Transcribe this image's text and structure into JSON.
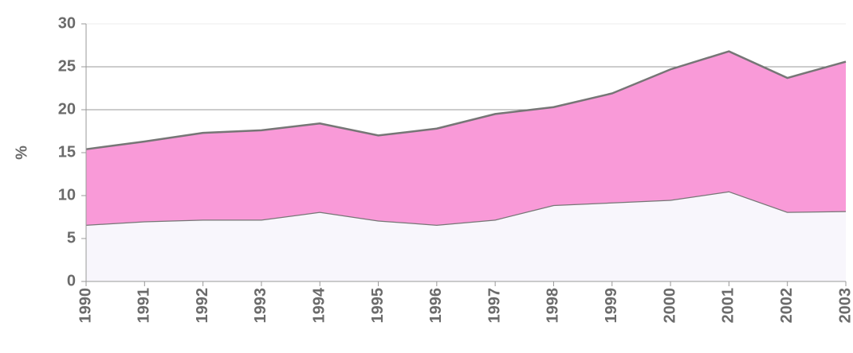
{
  "chart_data": {
    "type": "stacked_area",
    "y_label": "%",
    "categories": [
      "1990",
      "1991",
      "1992",
      "1993",
      "1994",
      "1995",
      "1996",
      "1997",
      "1998",
      "1999",
      "2000",
      "2001",
      "2002",
      "2003"
    ],
    "series": [
      {
        "color": "#f8f6fc",
        "values": [
          6.6,
          7.0,
          7.2,
          7.2,
          8.1,
          7.1,
          6.6,
          7.2,
          8.9,
          9.2,
          9.5,
          10.5,
          8.1,
          8.2
        ]
      },
      {
        "color": "#f99ad8",
        "values": [
          8.8,
          9.3,
          10.1,
          10.4,
          10.3,
          9.9,
          11.2,
          12.3,
          11.4,
          12.7,
          15.2,
          16.3,
          15.6,
          17.4
        ]
      }
    ],
    "ylim": [
      0,
      30
    ],
    "yticks": [
      0,
      5,
      10,
      15,
      20,
      25,
      30
    ],
    "grid": true
  }
}
